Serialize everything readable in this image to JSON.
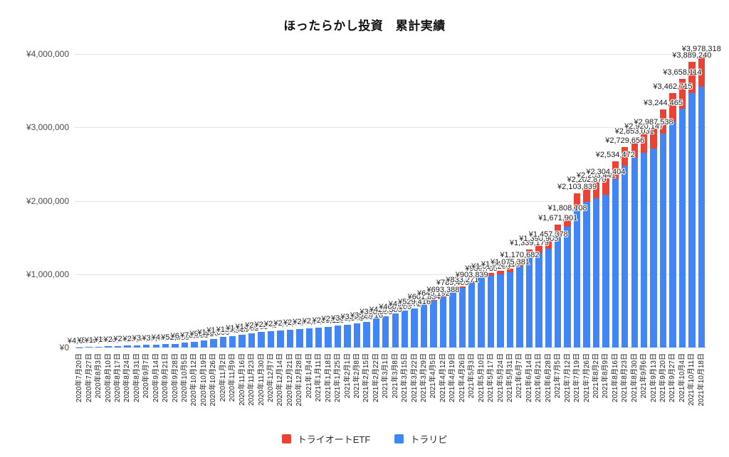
{
  "title": "ほったらかし投資　累計実績",
  "chart_data": {
    "type": "bar",
    "stacked": true,
    "title": "ほったらかし投資　累計実績",
    "xlabel": "",
    "ylabel": "",
    "ylim": [
      0,
      4000000
    ],
    "grid": true,
    "legend_position": "bottom",
    "y_ticks": [
      "¥0",
      "¥1,000,000",
      "¥2,000,000",
      "¥3,000,000",
      "¥4,000,000"
    ],
    "currency_prefix": "¥",
    "categories": [
      "2020年7月20日",
      "2020年7月27日",
      "2020年8月3日",
      "2020年8月10日",
      "2020年8月17日",
      "2020年8月24日",
      "2020年8月31日",
      "2020年9月7日",
      "2020年9月14日",
      "2020年9月21日",
      "2020年9月28日",
      "2020年10月5日",
      "2020年10月12日",
      "2020年10月19日",
      "2020年10月26日",
      "2020年11月2日",
      "2020年11月9日",
      "2020年11月16日",
      "2020年11月23日",
      "2020年11月30日",
      "2020年12月7日",
      "2020年12月14日",
      "2020年12月21日",
      "2020年12月28日",
      "2021年1月4日",
      "2021年1月11日",
      "2021年1月18日",
      "2021年1月25日",
      "2021年2月1日",
      "2021年2月8日",
      "2021年2月15日",
      "2021年2月22日",
      "2021年3月1日",
      "2021年3月8日",
      "2021年3月15日",
      "2021年3月22日",
      "2021年3月29日",
      "2021年4月5日",
      "2021年4月12日",
      "2021年4月19日",
      "2021年4月26日",
      "2021年5月3日",
      "2021年5月10日",
      "2021年5月17日",
      "2021年5月24日",
      "2021年5月31日",
      "2021年6月7日",
      "2021年6月14日",
      "2021年6月21日",
      "2021年6月28日",
      "2021年7月5日",
      "2021年7月12日",
      "2021年7月19日",
      "2021年7月26日",
      "2021年8月2日",
      "2021年8月9日",
      "2021年8月16日",
      "2021年8月23日",
      "2021年8月30日",
      "2021年9月6日",
      "2021年9月13日",
      "2021年9月20日",
      "2021年9月27日",
      "2021年10月4日",
      "2021年10月11日",
      "2021年10月18日"
    ],
    "series": [
      {
        "name": "トライオートETF",
        "color": "#ea4335",
        "values": [
          0,
          0,
          0,
          0,
          0,
          0,
          0,
          0,
          0,
          0,
          0,
          0,
          0,
          0,
          0,
          0,
          0,
          0,
          0,
          0,
          0,
          0,
          0,
          0,
          0,
          0,
          0,
          0,
          0,
          0,
          0,
          0,
          0,
          0,
          0,
          0,
          0,
          4100,
          8206,
          12350,
          15800,
          21040,
          30515,
          34890,
          40270,
          50160,
          61835,
          90412,
          100380,
          110925,
          139488,
          160236,
          209344,
          214850,
          219030,
          224516,
          235608,
          249139,
          263215,
          267480,
          271904,
          329877,
          381260,
          401532,
          419844,
          425106
        ]
      },
      {
        "name": "トラリピ",
        "color": "#4285f4",
        "values": [
          4120,
          8966,
          12551,
          16443,
          21880,
          25113,
          29874,
          34552,
          39605,
          45831,
          52490,
          64327,
          78906,
          93514,
          118650,
          142338,
          155410,
          171862,
          189933,
          208550,
          221486,
          232170,
          244862,
          253519,
          262375,
          271948,
          283116,
          296730,
          309548,
          330269,
          352716,
          398555,
          425380,
          466109,
          498972,
          529416,
          601834,
          641092,
          685182,
          777055,
          817471,
          882799,
          956220,
          979370,
          1001848,
          1025221,
          1108847,
          1248767,
          1290525,
          1346453,
          1532413,
          1647872,
          1894495,
          1988020,
          2034411,
          2079888,
          2298864,
          2480517,
          2589816,
          2652667,
          2715634,
          2914588,
          3081455,
          3256582,
          3469396,
          3553212
        ]
      }
    ]
  }
}
